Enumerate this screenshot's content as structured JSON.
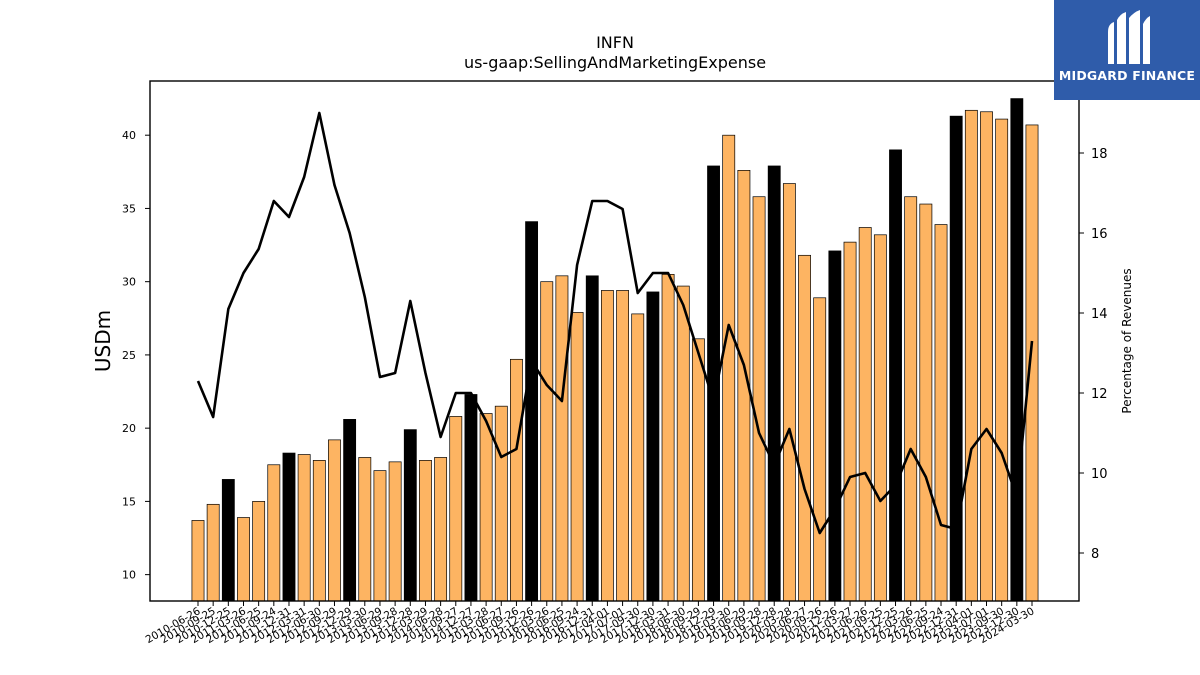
{
  "brand": {
    "name": "MIDGARD FINANCE",
    "bg_color": "#2f5caa"
  },
  "chart_data": {
    "type": "bar",
    "title": "INFN",
    "subtitle": "us-gaap:SellingAndMarketingExpense",
    "ylabel": "USDm",
    "y2label": "Percentage of Revenues",
    "ylim": [
      8.2,
      43.7
    ],
    "y2lim": [
      6.8,
      19.8
    ],
    "yticks": [
      10,
      15,
      20,
      25,
      30,
      35,
      40
    ],
    "y2ticks": [
      8,
      10,
      12,
      14,
      16,
      18
    ],
    "colors": {
      "bar": "#fdb462",
      "bar_highlight": "#000000",
      "line": "#000000"
    },
    "categories": [
      "2010-06-26",
      "2010-09-25",
      "2010-12-25",
      "2011-03-26",
      "2011-06-25",
      "2011-09-24",
      "2011-12-31",
      "2012-03-31",
      "2012-06-30",
      "2012-09-29",
      "2012-12-29",
      "2013-03-30",
      "2013-06-29",
      "2013-09-28",
      "2013-12-28",
      "2014-03-29",
      "2014-06-28",
      "2014-09-27",
      "2014-12-27",
      "2015-03-28",
      "2015-06-27",
      "2015-09-26",
      "2015-12-26",
      "2016-03-26",
      "2016-06-25",
      "2016-09-24",
      "2016-12-31",
      "2017-04-01",
      "2017-07-01",
      "2017-09-30",
      "2017-12-30",
      "2018-03-31",
      "2018-06-30",
      "2018-09-29",
      "2018-12-29",
      "2019-03-30",
      "2019-06-29",
      "2019-09-28",
      "2019-12-28",
      "2020-03-28",
      "2020-06-27",
      "2020-09-26",
      "2020-12-26",
      "2021-03-27",
      "2021-06-26",
      "2021-09-25",
      "2021-12-25",
      "2022-03-26",
      "2022-06-25",
      "2022-09-24",
      "2022-12-31",
      "2023-04-01",
      "2023-07-01",
      "2023-09-30",
      "2023-12-30",
      "2024-03-30"
    ],
    "series": [
      {
        "type": "bar",
        "values": [
          13.7,
          14.8,
          16.5,
          13.9,
          15.0,
          17.5,
          18.3,
          18.2,
          17.8,
          19.2,
          20.6,
          18.0,
          17.1,
          17.7,
          19.9,
          17.8,
          18.0,
          20.8,
          22.3,
          21.0,
          21.5,
          24.7,
          34.1,
          30.0,
          30.4,
          27.9,
          30.4,
          29.4,
          29.4,
          27.8,
          29.3,
          30.5,
          29.7,
          26.1,
          37.9,
          40.0,
          37.6,
          35.8,
          37.9,
          36.7,
          31.8,
          28.9,
          32.1,
          32.7,
          33.7,
          33.2,
          39.0,
          35.8,
          35.3,
          33.9,
          41.3,
          41.7,
          41.6,
          41.1,
          42.5,
          40.7
        ],
        "highlight": [
          false,
          false,
          true,
          false,
          false,
          false,
          true,
          false,
          false,
          false,
          true,
          false,
          false,
          false,
          true,
          false,
          false,
          false,
          true,
          false,
          false,
          false,
          true,
          false,
          false,
          false,
          true,
          false,
          false,
          false,
          true,
          false,
          false,
          false,
          true,
          false,
          false,
          false,
          true,
          false,
          false,
          false,
          true,
          false,
          false,
          false,
          true,
          false,
          false,
          false,
          true,
          false,
          false,
          false,
          true,
          false
        ]
      },
      {
        "type": "line",
        "axis": "y2",
        "values": [
          12.3,
          11.4,
          14.1,
          15.0,
          15.6,
          16.8,
          16.4,
          17.4,
          19.0,
          17.2,
          16.0,
          14.4,
          12.4,
          12.5,
          14.3,
          12.5,
          10.9,
          12.0,
          12.0,
          11.3,
          10.4,
          10.6,
          12.8,
          12.2,
          11.8,
          15.2,
          16.8,
          16.8,
          16.6,
          14.5,
          15.0,
          15.0,
          14.2,
          13.0,
          11.8,
          13.7,
          12.7,
          11.0,
          10.2,
          11.1,
          9.6,
          8.5,
          9.1,
          9.9,
          10.0,
          9.3,
          9.7,
          10.6,
          9.9,
          8.7,
          8.6,
          10.6,
          11.1,
          10.5,
          9.4,
          13.3
        ]
      }
    ]
  }
}
